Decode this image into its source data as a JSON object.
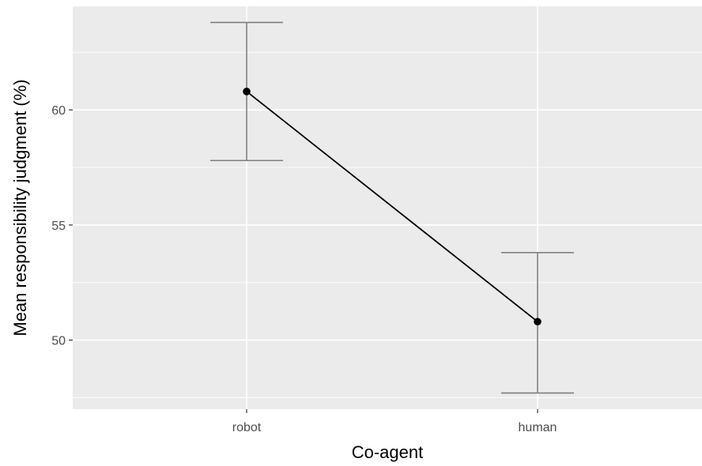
{
  "chart_data": {
    "type": "line",
    "title": "",
    "xlabel": "Co-agent",
    "ylabel": "Mean responsibility judgment (%)",
    "categories": [
      "robot",
      "human"
    ],
    "series": [
      {
        "values": [
          60.8,
          50.8
        ],
        "error_low": [
          57.8,
          47.7
        ],
        "error_high": [
          63.8,
          53.8
        ]
      }
    ],
    "ylim": [
      47.0,
      64.5
    ],
    "yticks": [
      50,
      55,
      60
    ],
    "grid": true,
    "colors": {
      "panel": "#ebebeb",
      "grid": "#ffffff",
      "line": "#000000",
      "errorbar": "#7f7f7f",
      "tick_text": "#4d4d4d"
    }
  }
}
